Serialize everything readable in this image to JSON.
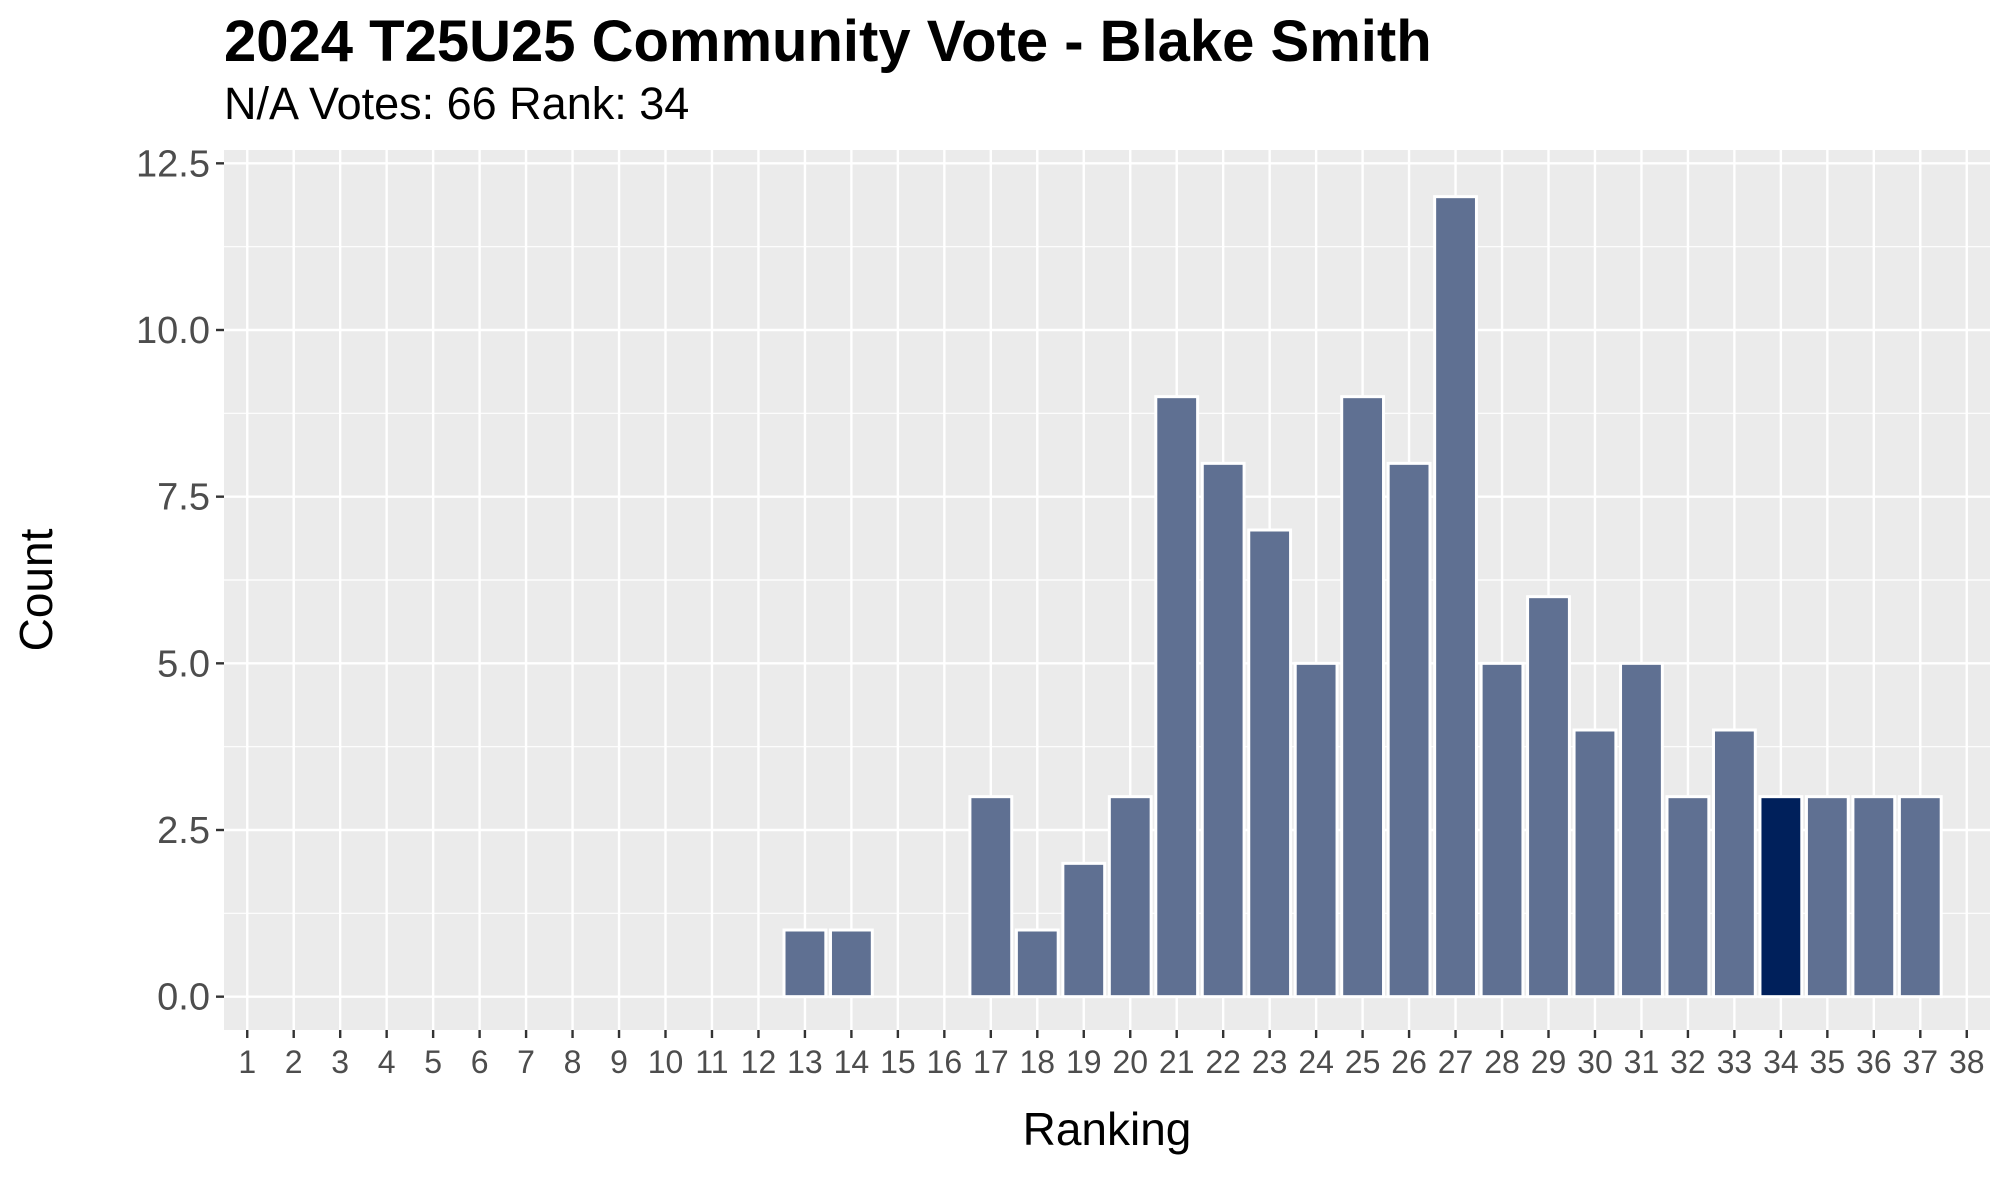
{
  "chart_data": {
    "type": "bar",
    "title": "2024 T25U25 Community Vote - Blake Smith",
    "subtitle": "N/A Votes: 66  Rank: 34",
    "xlabel": "Ranking",
    "ylabel": "Count",
    "ylim": [
      -0.5,
      12.7
    ],
    "yticks": [
      "0.0",
      "2.5",
      "5.0",
      "7.5",
      "10.0",
      "12.5"
    ],
    "ytick_values": [
      0,
      2.5,
      5,
      7.5,
      10,
      12.5
    ],
    "categories": [
      "1",
      "2",
      "3",
      "4",
      "5",
      "6",
      "7",
      "8",
      "9",
      "10",
      "11",
      "12",
      "13",
      "14",
      "15",
      "16",
      "17",
      "18",
      "19",
      "20",
      "21",
      "22",
      "23",
      "24",
      "25",
      "26",
      "27",
      "28",
      "29",
      "30",
      "31",
      "32",
      "33",
      "34",
      "35",
      "36",
      "37",
      "38"
    ],
    "values": [
      0,
      0,
      0,
      0,
      0,
      0,
      0,
      0,
      0,
      0,
      0,
      0,
      1,
      1,
      0,
      0,
      3,
      1,
      2,
      3,
      9,
      8,
      7,
      5,
      9,
      8,
      12,
      5,
      6,
      4,
      5,
      3,
      4,
      3,
      3,
      3,
      3,
      0
    ],
    "highlight_category": "34",
    "grid": true,
    "colors": {
      "bar": "#5f7092",
      "highlight": "#00205b",
      "panel": "#ebebeb",
      "grid": "#ffffff"
    }
  }
}
